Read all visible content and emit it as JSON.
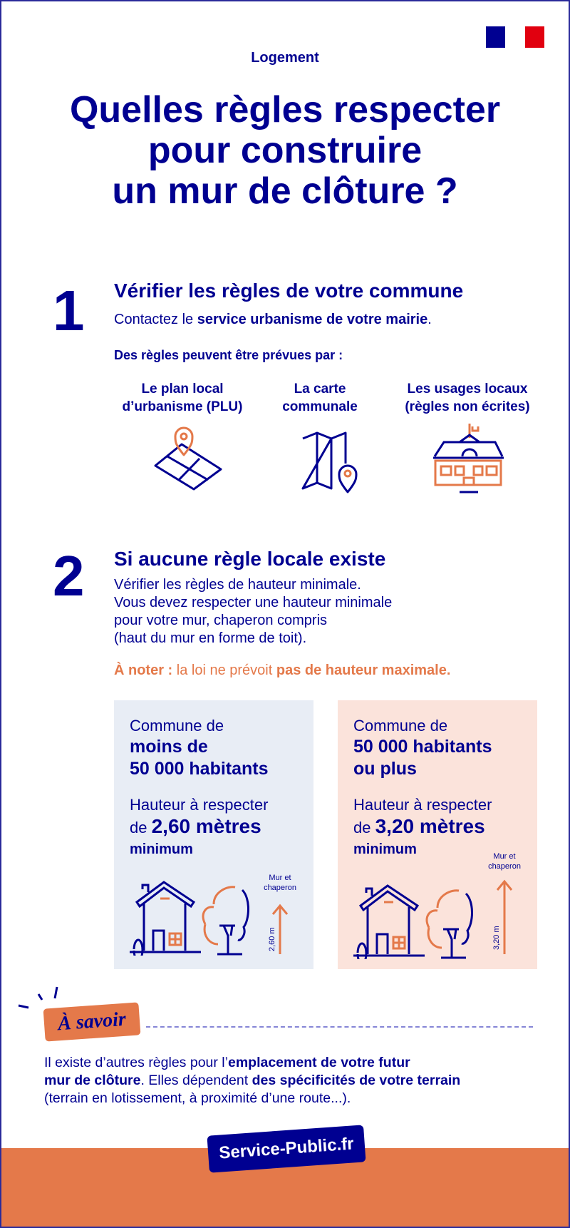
{
  "header": {
    "category": "Logement",
    "title_lines": [
      "Quelles règles respecter",
      "pour construire",
      "un mur de clôture ?"
    ],
    "logo": "republique-francaise-flag"
  },
  "step1": {
    "number": "1",
    "heading": "Vérifier les règles de votre commune",
    "text_prefix": "Contactez le ",
    "text_bold": "service urbanisme de votre mairie",
    "text_suffix": ".",
    "subheading": "Des règles peuvent être prévues par :",
    "items": [
      {
        "line1": "Le plan local",
        "line2": "d’urbanisme (PLU)",
        "icon": "map-pin-icon"
      },
      {
        "line1": "La carte",
        "line2": "communale",
        "icon": "folded-map-icon"
      },
      {
        "line1": "Les usages locaux",
        "line2": "(règles non écrites)",
        "icon": "town-hall-icon"
      }
    ]
  },
  "step2": {
    "number": "2",
    "heading": "Si aucune règle locale existe",
    "lines": [
      "Vérifier les règles de hauteur minimale.",
      "Vous devez respecter une hauteur minimale",
      "pour votre mur, chaperon compris",
      "(haut du mur en forme de toit)."
    ],
    "note_label": "À noter :",
    "note_text": " la loi ne prévoit ",
    "note_bold": "pas de hauteur maximale."
  },
  "boxes": [
    {
      "l1": "Commune de",
      "l2a": "moins de",
      "l2b": "50 000 habitants",
      "h1": "Hauteur à respecter",
      "h2a": "de ",
      "h2b": "2,60 mètres",
      "min": "minimum",
      "wall_label_1": "Mur et",
      "wall_label_2": "chaperon",
      "measure": "2,60 m",
      "height_m": 2.6,
      "bg": "#E8EDF5"
    },
    {
      "l1": "Commune de",
      "l2a": "50 000 habitants",
      "l2b": "ou plus",
      "h1": "Hauteur à respecter",
      "h2a": "de ",
      "h2b": "3,20 mètres",
      "min": "minimum",
      "wall_label_1": "Mur et",
      "wall_label_2": "chaperon",
      "measure": "3,20 m",
      "height_m": 3.2,
      "bg": "#FBE3DB"
    }
  ],
  "savoir": {
    "badge": "À savoir",
    "p1": "Il existe d’autres règles pour l’",
    "b1": "emplacement de votre futur",
    "b2": "mur de clôture",
    "p2": ". Elles dépendent ",
    "b3": "des spécificités de votre terrain",
    "p3": "(terrain en lotissement, à proximité d’une route...)."
  },
  "footer": {
    "brand": "Service-Public.fr"
  },
  "colors": {
    "blue": "#000091",
    "orange": "#E4794A",
    "red": "#E1000F"
  }
}
